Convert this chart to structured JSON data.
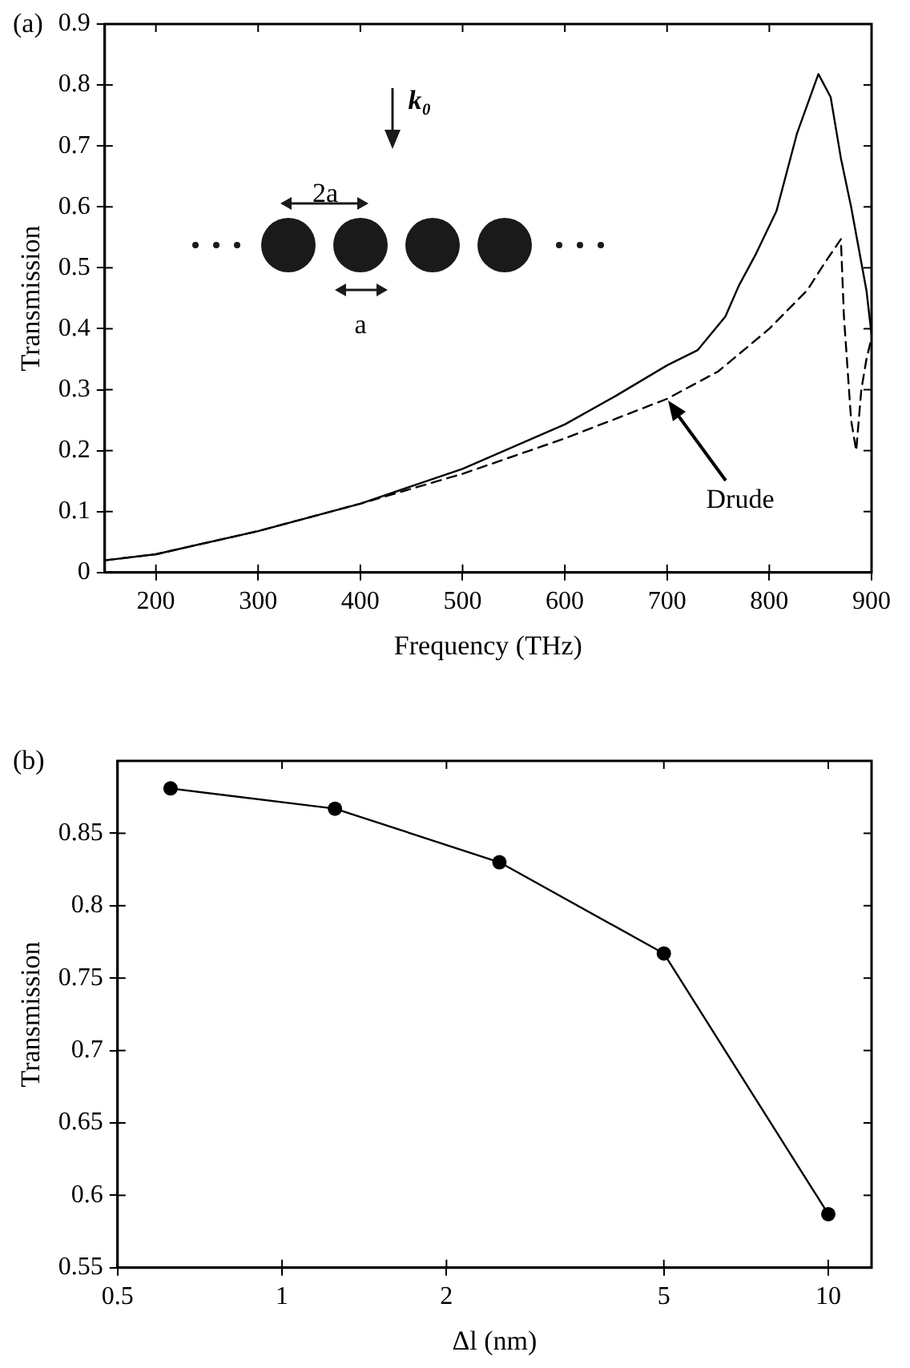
{
  "chart_data": [
    {
      "type": "line",
      "title": "(a)",
      "xlabel": "Frequency (THz)",
      "ylabel": "Transmission",
      "xlim": [
        150,
        900
      ],
      "xticks": [
        200,
        300,
        400,
        500,
        600,
        700,
        800,
        900
      ],
      "ylim": [
        0,
        0.9
      ],
      "yticks": [
        0,
        0.1,
        0.2,
        0.3,
        0.4,
        0.5,
        0.6,
        0.7,
        0.8,
        0.9
      ],
      "grid": false,
      "marker": "none",
      "series": [
        {
          "color": "#000000",
          "line_style": "solid",
          "x": [
            150,
            200,
            300,
            400,
            500,
            600,
            650,
            700,
            730,
            757,
            770,
            787,
            807,
            827,
            848,
            860,
            870,
            880,
            895,
            900
          ],
          "values": [
            0.02,
            0.03,
            0.068,
            0.113,
            0.17,
            0.243,
            0.29,
            0.34,
            0.365,
            0.42,
            0.47,
            0.523,
            0.593,
            0.72,
            0.818,
            0.78,
            0.68,
            0.6,
            0.463,
            0.39
          ]
        },
        {
          "color": "#000000",
          "line_style": "dashed",
          "x": [
            150,
            200,
            300,
            400,
            500,
            600,
            700,
            750,
            800,
            837,
            855,
            870,
            873,
            880,
            885,
            890,
            895,
            900
          ],
          "values": [
            0.02,
            0.03,
            0.068,
            0.113,
            0.162,
            0.22,
            0.285,
            0.33,
            0.4,
            0.463,
            0.51,
            0.547,
            0.42,
            0.25,
            0.2,
            0.3,
            0.35,
            0.385
          ]
        }
      ],
      "annotations": [
        "Drude",
        "k₀",
        "2a",
        "a"
      ]
    },
    {
      "type": "line",
      "title": "(b)",
      "xlabel": "Δl (nm)",
      "ylabel": "Transmission",
      "log": "x",
      "xlim": [
        0.5,
        12
      ],
      "xticks": [
        0.5,
        1,
        2,
        5,
        10
      ],
      "ylim": [
        0.55,
        0.9
      ],
      "yticks": [
        0.55,
        0.6,
        0.65,
        0.7,
        0.75,
        0.8,
        0.85
      ],
      "grid": false,
      "marker": "circle",
      "series": [
        {
          "color": "#000000",
          "line_style": "solid",
          "x": [
            0.625,
            1.25,
            2.5,
            5,
            10
          ],
          "values": [
            0.881,
            0.867,
            0.83,
            0.767,
            0.587
          ]
        }
      ]
    }
  ]
}
